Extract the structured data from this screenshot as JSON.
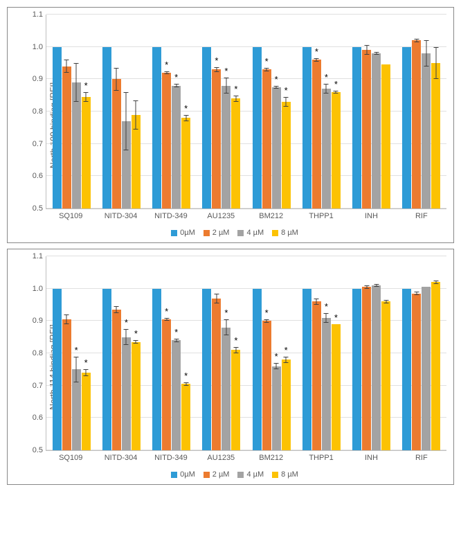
{
  "colors": {
    "c0": "#2e9bd6",
    "c2": "#ec7b2f",
    "c4": "#a3a3a3",
    "c8": "#fcc203",
    "grid": "#e0e0e0",
    "axis": "#bfbfbf",
    "text": "#595959"
  },
  "legend": [
    {
      "label": "0µM",
      "color": "#2e9bd6"
    },
    {
      "label": "2 µM",
      "color": "#ec7b2f"
    },
    {
      "label": "4 µM",
      "color": "#a3a3a3"
    },
    {
      "label": "8 µM",
      "color": "#fcc203"
    }
  ],
  "charts": [
    {
      "ylabel": "North 100 binding [RFI]",
      "ylim": [
        0.5,
        1.1
      ],
      "ytick_step": 0.1,
      "categories": [
        "SQ109",
        "NITD-304",
        "NITD-349",
        "AU1235",
        "BM212",
        "THPP1",
        "INH",
        "RIF"
      ],
      "series": [
        {
          "key": "0µM",
          "color": "#2e9bd6",
          "values": [
            1.0,
            1.0,
            1.0,
            1.0,
            1.0,
            1.0,
            1.0,
            1.0
          ],
          "err": [
            0,
            0,
            0,
            0,
            0,
            0,
            0,
            0
          ],
          "star": [
            false,
            false,
            false,
            false,
            false,
            false,
            false,
            false
          ]
        },
        {
          "key": "2µM",
          "color": "#ec7b2f",
          "values": [
            0.94,
            0.9,
            0.92,
            0.93,
            0.93,
            0.96,
            0.99,
            1.02
          ],
          "err": [
            0.02,
            0.035,
            0.005,
            0.008,
            0.005,
            0.005,
            0.015,
            0.005
          ],
          "star": [
            false,
            false,
            true,
            true,
            true,
            true,
            false,
            false
          ]
        },
        {
          "key": "4µM",
          "color": "#a3a3a3",
          "values": [
            0.89,
            0.77,
            0.88,
            0.88,
            0.875,
            0.87,
            0.98,
            0.98
          ],
          "err": [
            0.06,
            0.09,
            0.005,
            0.025,
            0.005,
            0.015,
            0.005,
            0.04
          ],
          "star": [
            false,
            false,
            true,
            true,
            true,
            true,
            false,
            false
          ]
        },
        {
          "key": "8µM",
          "color": "#fcc203",
          "values": [
            0.845,
            0.79,
            0.78,
            0.84,
            0.83,
            0.86,
            0.945,
            0.95
          ],
          "err": [
            0.015,
            0.045,
            0.01,
            0.01,
            0.015,
            0.005,
            0,
            0.05
          ],
          "star": [
            true,
            false,
            true,
            true,
            true,
            true,
            false,
            false
          ]
        }
      ]
    },
    {
      "ylabel": "North 114 binding [RFI]",
      "ylim": [
        0.5,
        1.1
      ],
      "ytick_step": 0.1,
      "categories": [
        "SQ109",
        "NITD-304",
        "NITD-349",
        "AU1235",
        "BM212",
        "THPP1",
        "INH",
        "RIF"
      ],
      "series": [
        {
          "key": "0µM",
          "color": "#2e9bd6",
          "values": [
            1.0,
            1.0,
            1.0,
            1.0,
            1.0,
            1.0,
            1.0,
            1.0
          ],
          "err": [
            0,
            0,
            0,
            0,
            0,
            0,
            0,
            0
          ],
          "star": [
            false,
            false,
            false,
            false,
            false,
            false,
            false,
            false
          ]
        },
        {
          "key": "2µM",
          "color": "#ec7b2f",
          "values": [
            0.905,
            0.935,
            0.905,
            0.97,
            0.9,
            0.96,
            1.005,
            0.985
          ],
          "err": [
            0.015,
            0.01,
            0.005,
            0.015,
            0.005,
            0.01,
            0.005,
            0.005
          ],
          "star": [
            false,
            false,
            true,
            false,
            true,
            false,
            false,
            false
          ]
        },
        {
          "key": "4µM",
          "color": "#a3a3a3",
          "values": [
            0.75,
            0.85,
            0.84,
            0.88,
            0.76,
            0.91,
            1.01,
            1.005
          ],
          "err": [
            0.04,
            0.025,
            0.005,
            0.025,
            0.01,
            0.015,
            0.005,
            0
          ],
          "star": [
            true,
            true,
            true,
            true,
            true,
            true,
            false,
            false
          ]
        },
        {
          "key": "8µM",
          "color": "#fcc203",
          "values": [
            0.74,
            0.835,
            0.705,
            0.81,
            0.78,
            0.89,
            0.96,
            1.02
          ],
          "err": [
            0.01,
            0.005,
            0.005,
            0.01,
            0.01,
            0,
            0.005,
            0.005
          ],
          "star": [
            true,
            true,
            true,
            true,
            true,
            true,
            false,
            false
          ]
        }
      ]
    }
  ]
}
